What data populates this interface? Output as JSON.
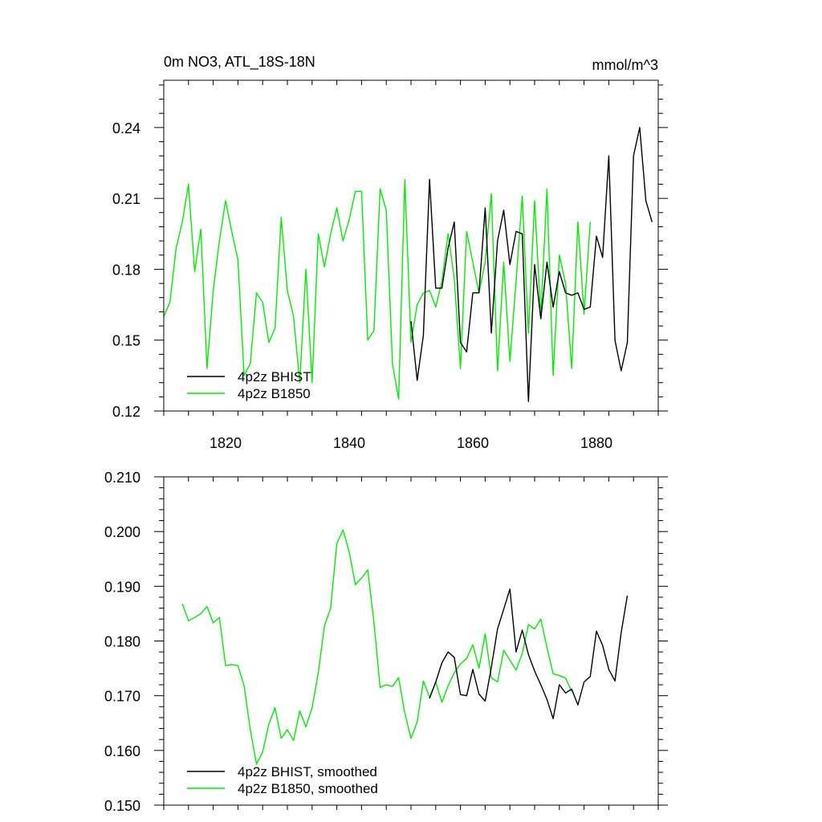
{
  "colors": {
    "bhist": "#000000",
    "b1850": "#00ee00",
    "axes": "#000000",
    "background": "#ffffff"
  },
  "chart_data": [
    {
      "type": "line",
      "title_left": "0m NO3, ATL_18S-18N",
      "title_right": "mmol/m^3",
      "xlabel": "",
      "ylabel": "",
      "xlim": [
        1810,
        1890
      ],
      "ylim": [
        0.12,
        0.26
      ],
      "x_ticks": [
        1820,
        1840,
        1860,
        1880
      ],
      "x_tick_labels": [
        "1820",
        "1840",
        "1860",
        "1880"
      ],
      "y_ticks": [
        0.12,
        0.15,
        0.18,
        0.21,
        0.24
      ],
      "y_tick_labels": [
        "0.12",
        "0.15",
        "0.18",
        "0.21",
        "0.24"
      ],
      "grid": false,
      "legend": "bottom-left",
      "series": [
        {
          "name": "4p2z BHIST",
          "color": "#000000",
          "x": [
            1850,
            1851,
            1852,
            1853,
            1854,
            1855,
            1856,
            1857,
            1858,
            1859,
            1860,
            1861,
            1862,
            1863,
            1864,
            1865,
            1866,
            1867,
            1868,
            1869,
            1870,
            1871,
            1872,
            1873,
            1874,
            1875,
            1876,
            1877,
            1878,
            1879,
            1880,
            1881,
            1882,
            1883,
            1884,
            1885,
            1886,
            1887,
            1888,
            1889
          ],
          "y": [
            0.158,
            0.133,
            0.152,
            0.218,
            0.172,
            0.172,
            0.189,
            0.2,
            0.149,
            0.145,
            0.17,
            0.17,
            0.206,
            0.153,
            0.192,
            0.205,
            0.182,
            0.196,
            0.195,
            0.124,
            0.182,
            0.159,
            0.183,
            0.164,
            0.179,
            0.17,
            0.169,
            0.17,
            0.163,
            0.164,
            0.194,
            0.185,
            0.228,
            0.15,
            0.137,
            0.149,
            0.228,
            0.24,
            0.209,
            0.2
          ]
        },
        {
          "name": "4p2z B1850",
          "color": "#00ee00",
          "x": [
            1810,
            1811,
            1812,
            1813,
            1814,
            1815,
            1816,
            1817,
            1818,
            1819,
            1820,
            1821,
            1822,
            1823,
            1824,
            1825,
            1826,
            1827,
            1828,
            1829,
            1830,
            1831,
            1832,
            1833,
            1834,
            1835,
            1836,
            1837,
            1838,
            1839,
            1840,
            1841,
            1842,
            1843,
            1844,
            1845,
            1846,
            1847,
            1848,
            1849,
            1850,
            1851,
            1852,
            1853,
            1854,
            1855,
            1856,
            1857,
            1858,
            1859,
            1860,
            1861,
            1862,
            1863,
            1864,
            1865,
            1866,
            1867,
            1868,
            1869,
            1870,
            1871,
            1872,
            1873,
            1874,
            1875,
            1876,
            1877,
            1878,
            1879
          ],
          "y": [
            0.16,
            0.166,
            0.189,
            0.2,
            0.216,
            0.179,
            0.197,
            0.138,
            0.171,
            0.192,
            0.209,
            0.196,
            0.184,
            0.135,
            0.14,
            0.17,
            0.166,
            0.149,
            0.155,
            0.202,
            0.171,
            0.16,
            0.132,
            0.18,
            0.132,
            0.195,
            0.181,
            0.195,
            0.206,
            0.192,
            0.201,
            0.213,
            0.213,
            0.15,
            0.154,
            0.214,
            0.205,
            0.14,
            0.125,
            0.218,
            0.149,
            0.165,
            0.17,
            0.171,
            0.164,
            0.175,
            0.195,
            0.176,
            0.138,
            0.196,
            0.183,
            0.17,
            0.183,
            0.212,
            0.137,
            0.183,
            0.141,
            0.175,
            0.211,
            0.153,
            0.209,
            0.16,
            0.214,
            0.135,
            0.186,
            0.174,
            0.138,
            0.2,
            0.161,
            0.2
          ]
        }
      ]
    },
    {
      "type": "line",
      "title_left": "",
      "title_right": "",
      "xlabel": "",
      "ylabel": "",
      "xlim": [
        1810,
        1890
      ],
      "ylim": [
        0.15,
        0.21
      ],
      "x_ticks": [
        1820,
        1840,
        1860,
        1880
      ],
      "x_tick_labels": [],
      "y_ticks": [
        0.15,
        0.16,
        0.17,
        0.18,
        0.19,
        0.2,
        0.21
      ],
      "y_tick_labels": [
        "0.150",
        "0.160",
        "0.170",
        "0.180",
        "0.190",
        "0.200",
        "0.210"
      ],
      "grid": false,
      "legend": "bottom-left",
      "series": [
        {
          "name": "4p2z BHIST, smoothed",
          "color": "#000000",
          "x": [
            1853,
            1854,
            1855,
            1856,
            1857,
            1858,
            1859,
            1860,
            1861,
            1862,
            1863,
            1864,
            1865,
            1866,
            1867,
            1868,
            1869,
            1870,
            1871,
            1872,
            1873,
            1874,
            1875,
            1876,
            1877,
            1878,
            1879,
            1880,
            1881,
            1882,
            1883,
            1884,
            1885
          ],
          "y": [
            0.1695,
            0.1725,
            0.176,
            0.178,
            0.177,
            0.1702,
            0.17,
            0.1748,
            0.1703,
            0.169,
            0.1752,
            0.1822,
            0.1858,
            0.1895,
            0.178,
            0.182,
            0.1775,
            0.1745,
            0.172,
            0.1693,
            0.1658,
            0.172,
            0.1705,
            0.1712,
            0.1683,
            0.1725,
            0.1735,
            0.1818,
            0.1792,
            0.1748,
            0.1727,
            0.1815,
            0.1883
          ]
        },
        {
          "name": "4p2z B1850, smoothed",
          "color": "#00ee00",
          "x": [
            1813,
            1814,
            1815,
            1816,
            1817,
            1818,
            1819,
            1820,
            1821,
            1822,
            1823,
            1824,
            1825,
            1826,
            1827,
            1828,
            1829,
            1830,
            1831,
            1832,
            1833,
            1834,
            1835,
            1836,
            1837,
            1838,
            1839,
            1840,
            1841,
            1842,
            1843,
            1844,
            1845,
            1846,
            1847,
            1848,
            1849,
            1850,
            1851,
            1852,
            1853,
            1854,
            1855,
            1856,
            1857,
            1858,
            1859,
            1860,
            1861,
            1862,
            1863,
            1864,
            1865,
            1866,
            1867,
            1868,
            1869,
            1870,
            1871,
            1872,
            1873,
            1874,
            1875,
            1876
          ],
          "y": [
            0.1868,
            0.1837,
            0.1843,
            0.185,
            0.1863,
            0.1833,
            0.1843,
            0.1755,
            0.1757,
            0.1755,
            0.1718,
            0.1638,
            0.1575,
            0.1597,
            0.1648,
            0.1678,
            0.1622,
            0.1638,
            0.1618,
            0.1672,
            0.1643,
            0.1678,
            0.1742,
            0.1828,
            0.186,
            0.1978,
            0.2003,
            0.1963,
            0.1903,
            0.1915,
            0.193,
            0.1835,
            0.1715,
            0.172,
            0.1717,
            0.1733,
            0.1668,
            0.1622,
            0.1652,
            0.1727,
            0.1697,
            0.1725,
            0.1688,
            0.1718,
            0.1742,
            0.1758,
            0.1768,
            0.1793,
            0.175,
            0.1813,
            0.1733,
            0.1725,
            0.1783,
            0.1765,
            0.1747,
            0.1777,
            0.183,
            0.1822,
            0.184,
            0.1788,
            0.174,
            0.1737,
            0.1732,
            0.1708
          ]
        }
      ]
    }
  ]
}
